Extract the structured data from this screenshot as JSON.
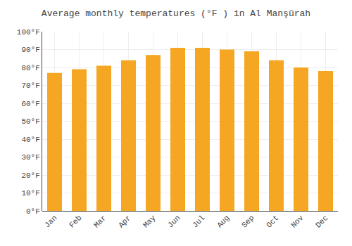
{
  "chart_data": {
    "type": "bar",
    "title": "Average monthly temperatures (°F ) in Al Manşūrah",
    "categories": [
      "Jan",
      "Feb",
      "Mar",
      "Apr",
      "May",
      "Jun",
      "Jul",
      "Aug",
      "Sep",
      "Oct",
      "Nov",
      "Dec"
    ],
    "values": [
      77,
      79,
      81,
      84,
      87,
      91,
      91,
      90,
      89,
      84,
      80,
      78
    ],
    "color": "#F5A623",
    "ylim": [
      0,
      100
    ],
    "yticks": [
      {
        "value": 0,
        "label": "0°F"
      },
      {
        "value": 10,
        "label": "10°F"
      },
      {
        "value": 20,
        "label": "20°F"
      },
      {
        "value": 30,
        "label": "30°F"
      },
      {
        "value": 40,
        "label": "40°F"
      },
      {
        "value": 50,
        "label": "50°F"
      },
      {
        "value": 60,
        "label": "60°F"
      },
      {
        "value": 70,
        "label": "70°F"
      },
      {
        "value": 80,
        "label": "80°F"
      },
      {
        "value": 90,
        "label": "90°F"
      },
      {
        "value": 100,
        "label": "100°F"
      }
    ],
    "grid": true
  }
}
